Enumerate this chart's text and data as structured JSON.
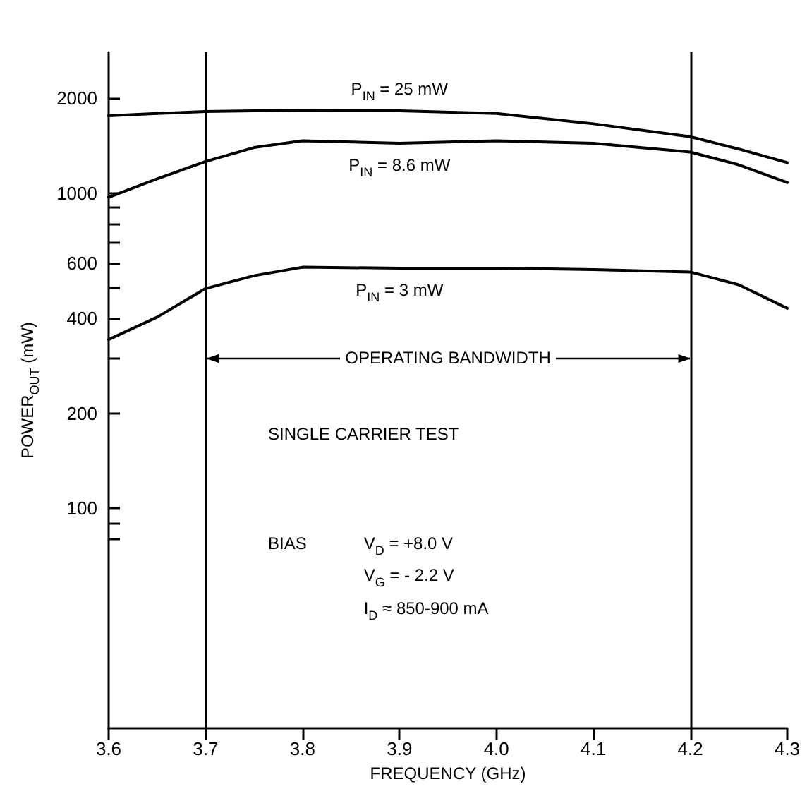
{
  "chart_data": {
    "type": "line",
    "xlabel": "FREQUENCY (GHz)",
    "ylabel": "POWER$_{OUT}$ (mW)",
    "xlim": [
      3.6,
      4.3
    ],
    "xticks": [
      3.6,
      3.7,
      3.8,
      3.9,
      {
        "value": 4,
        "label": "4.0"
      },
      4.1,
      4.2,
      4.3
    ],
    "ylim": [
      20,
      2800
    ],
    "log": "y",
    "yticks": [
      {
        "value": 80,
        "label": null
      },
      {
        "value": 90,
        "label": null
      },
      100,
      200,
      {
        "value": 300,
        "label": null
      },
      400,
      {
        "value": 500,
        "label": null
      },
      600,
      {
        "value": 700,
        "label": null
      },
      {
        "value": 800,
        "label": null
      },
      {
        "value": 900,
        "label": null
      },
      1000,
      2000
    ],
    "grid": false,
    "legend": false,
    "marker": "none",
    "line_style": "solid",
    "x": [
      3.6,
      3.65,
      3.7,
      3.75,
      3.8,
      3.9,
      4.0,
      4.1,
      4.2,
      4.25,
      4.3
    ],
    "series": [
      {
        "name": "P$_{IN}$ = 25 mW",
        "color": "#000000",
        "values": [
          1760,
          1790,
          1815,
          1825,
          1830,
          1825,
          1790,
          1660,
          1510,
          1380,
          1250
        ]
      },
      {
        "name": "P$_{IN}$ = 8.6 mW",
        "color": "#000000",
        "values": [
          970,
          1110,
          1260,
          1395,
          1465,
          1440,
          1465,
          1440,
          1350,
          1230,
          1080
        ]
      },
      {
        "name": "P$_{IN}$ = 3 mW",
        "color": "#000000",
        "values": [
          343,
          404,
          498,
          547,
          582,
          578,
          578,
          572,
          562,
          512,
          431
        ]
      }
    ],
    "ref_lines": [
      {
        "axis": "x",
        "value": 3.7,
        "color": "#000000"
      },
      {
        "axis": "x",
        "value": 4.2,
        "color": "#000000"
      }
    ],
    "annotations": [
      {
        "text": "OPERATING BANDWIDTH",
        "x": 4.2,
        "y": 300
      },
      "SINGLE CARRIER TEST",
      "BIAS",
      "V$_{D}$ = +8.0 V",
      "V$_{G}$ = - 2.2 V",
      "I$_{D}$ ≈ 850-900 mA"
    ]
  }
}
